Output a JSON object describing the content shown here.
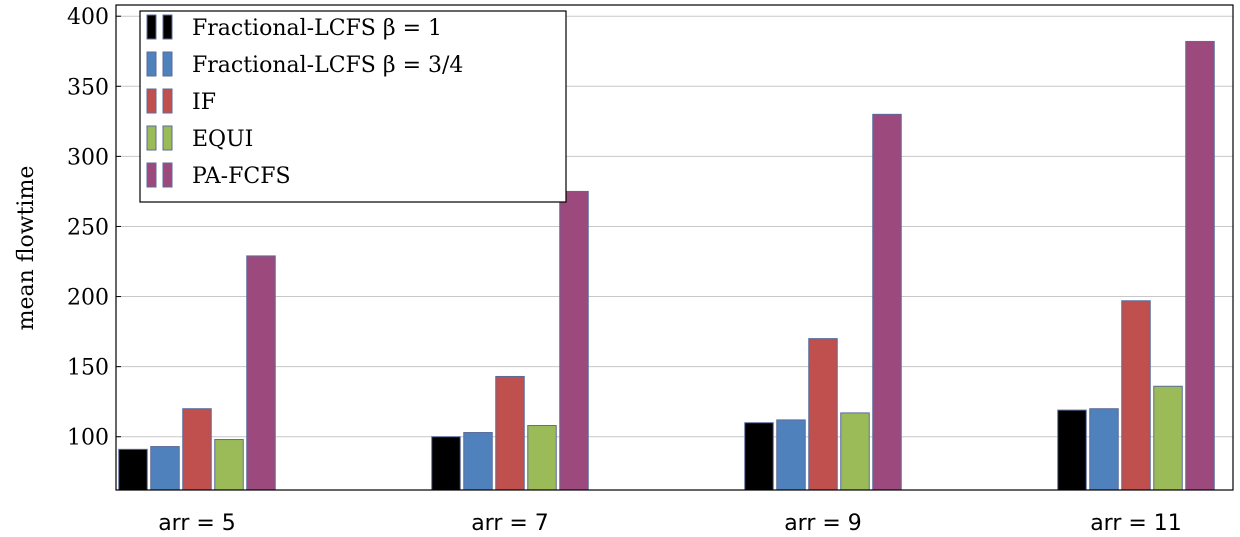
{
  "chart_data": {
    "type": "bar",
    "title": "",
    "xlabel": "",
    "ylabel": "mean flowtime",
    "categories": [
      "arr = 5",
      "arr = 7",
      "arr = 9",
      "arr = 11"
    ],
    "series": [
      {
        "name": "Fractional-LCFS β = 1",
        "color": "#000000",
        "values": [
          91,
          100,
          110,
          119
        ]
      },
      {
        "name": "Fractional-LCFS β = 3/4",
        "color": "#4f81bd",
        "values": [
          93,
          103,
          112,
          120
        ]
      },
      {
        "name": "IF",
        "color": "#c0504d",
        "values": [
          120,
          143,
          170,
          197
        ]
      },
      {
        "name": "EQUI",
        "color": "#9bbb59",
        "values": [
          98,
          108,
          117,
          136
        ]
      },
      {
        "name": "PA-FCFS",
        "color": "#9c4a7d",
        "values": [
          229,
          275,
          330,
          382
        ]
      }
    ],
    "ylim": [
      62,
      408
    ],
    "yticks": [
      100,
      150,
      200,
      250,
      300,
      350,
      400
    ],
    "grid": true,
    "legend_position": "top-left"
  }
}
